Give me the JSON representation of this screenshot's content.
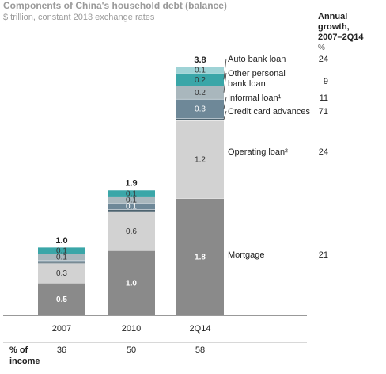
{
  "chart_data": {
    "type": "bar",
    "stacked": true,
    "title": "Components of China's household debt (balance)",
    "subtitle": "$ trillion, constant 2013 exchange rates",
    "categories": [
      "2007",
      "2010",
      "2Q14"
    ],
    "totals": [
      "1.0",
      "1.9",
      "3.8"
    ],
    "series": [
      {
        "name": "Mortgage",
        "values": [
          0.5,
          1.0,
          1.8
        ],
        "labels": [
          "0.5",
          "1.0",
          "1.8"
        ],
        "color": "#8a8a8a",
        "text_color": "#ffffff",
        "growth": "21"
      },
      {
        "name": "Operating loan²",
        "values": [
          0.3,
          0.6,
          1.2
        ],
        "labels": [
          "0.3",
          "0.6",
          "1.2"
        ],
        "color": "#d2d2d2",
        "text_color": "#333333",
        "growth": "24"
      },
      {
        "name": "Credit card advances",
        "values": [
          0.02,
          0.03,
          0.03
        ],
        "labels": [
          "",
          "",
          ""
        ],
        "color": "#4e6470",
        "text_color": "#ffffff",
        "growth": "71"
      },
      {
        "name": "Informal loan¹",
        "values": [
          0.03,
          0.1,
          0.3
        ],
        "labels": [
          "",
          "0.1",
          "0.3"
        ],
        "color": "#6e8898",
        "text_color": "#ffffff",
        "growth": "11"
      },
      {
        "name": "Other personal bank loan",
        "values": [
          0.1,
          0.1,
          0.2
        ],
        "labels": [
          "0.1",
          "0.1",
          "0.2"
        ],
        "color": "#a9b7bd",
        "text_color": "#333333",
        "growth": "9"
      },
      {
        "name": "Auto bank loan",
        "values": [
          0.1,
          0.1,
          0.2
        ],
        "labels": [
          "0.1",
          "0.1",
          "0.2"
        ],
        "color": "#3aa6a8",
        "text_color": "#333333",
        "growth": "24"
      },
      {
        "name": "",
        "values": [
          0.0,
          0.0,
          0.1
        ],
        "labels": [
          "",
          "",
          "0.1"
        ],
        "color": "#9fd3d6",
        "text_color": "#333333",
        "growth": ""
      }
    ],
    "legend_order": [
      "Auto bank loan",
      "Other personal bank loan",
      "Informal loan¹",
      "Credit card advances",
      "Operating loan²",
      "Mortgage"
    ],
    "growth_header": [
      "Annual",
      "growth,",
      "2007–2Q14"
    ],
    "growth_unit": "%",
    "income_label": [
      "% of",
      "income"
    ],
    "income_values": [
      "36",
      "50",
      "58"
    ]
  }
}
